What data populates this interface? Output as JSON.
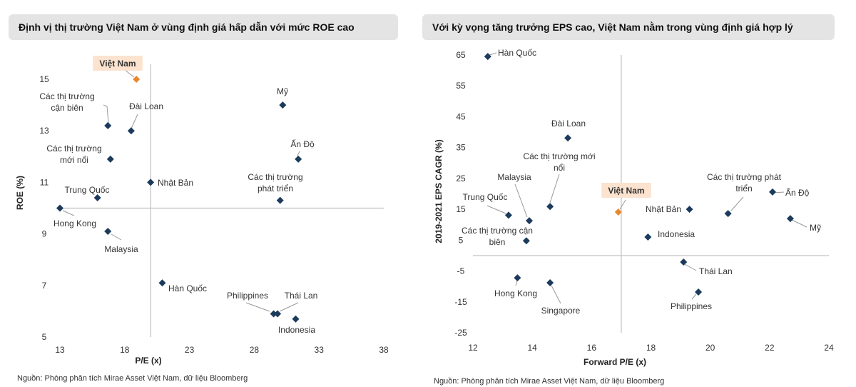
{
  "chart_data": [
    {
      "type": "scatter",
      "title": "Định vị thị trường Việt Nam ở vùng định giá hấp dẫn với mức ROE cao",
      "xlabel": "P/E (x)",
      "ylabel": "ROE (%)",
      "xlim": [
        13,
        38
      ],
      "ylim": [
        5,
        15
      ],
      "xticks": [
        "13",
        "18",
        "23",
        "28",
        "33",
        "38"
      ],
      "yticks": [
        "5",
        "7",
        "9",
        "11",
        "13",
        "15"
      ],
      "crosshair": {
        "x": 20,
        "y": 10
      },
      "grid": false,
      "source": "Nguồn: Phòng phân tích Mirae Asset Việt Nam, dữ liệu Bloomberg",
      "points": [
        {
          "label": "Việt Nam",
          "x": 18.9,
          "y": 15.0,
          "highlight": true
        },
        {
          "label": "Các thị trường cận biên",
          "lines": [
            "Các thị trường",
            "cận biên"
          ],
          "x": 16.7,
          "y": 13.2
        },
        {
          "label": "Đài Loan",
          "x": 18.5,
          "y": 13.0
        },
        {
          "label": "Mỹ",
          "x": 30.2,
          "y": 14.0
        },
        {
          "label": "Ấn Độ",
          "x": 31.4,
          "y": 11.9
        },
        {
          "label": "Các thị trường mới nổi",
          "lines": [
            "Các thị trường",
            "mới nổi"
          ],
          "x": 16.9,
          "y": 11.9
        },
        {
          "label": "Nhật Bản",
          "x": 20.0,
          "y": 11.0
        },
        {
          "label": "Trung Quốc",
          "x": 15.9,
          "y": 10.4
        },
        {
          "label": "Các thị trường phát triển",
          "lines": [
            "Các thị trường",
            "phát triển"
          ],
          "x": 30.0,
          "y": 10.3
        },
        {
          "label": "Hong Kong",
          "x": 13.0,
          "y": 10.0
        },
        {
          "label": "Malaysia",
          "x": 16.7,
          "y": 9.1
        },
        {
          "label": "Hàn Quốc",
          "x": 20.9,
          "y": 7.1
        },
        {
          "label": "Philippines",
          "x": 29.5,
          "y": 5.9
        },
        {
          "label": "Thái Lan",
          "x": 29.8,
          "y": 5.9
        },
        {
          "label": "Indonesia",
          "x": 31.2,
          "y": 5.7
        }
      ]
    },
    {
      "type": "scatter",
      "title": "Với kỳ vọng tăng trưởng EPS cao, Việt Nam nằm trong vùng định giá hợp lý",
      "xlabel": "Forward P/E (x)",
      "ylabel": "2019-2021 EPS CAGR (%)",
      "xlim": [
        12,
        24
      ],
      "ylim": [
        -25,
        65
      ],
      "xticks": [
        "12",
        "14",
        "16",
        "18",
        "20",
        "22",
        "24"
      ],
      "yticks": [
        "-25",
        "-15",
        "-5",
        "5",
        "15",
        "25",
        "35",
        "45",
        "55",
        "65"
      ],
      "crosshair": {
        "x": 17,
        "y": 0
      },
      "grid": false,
      "source": "Nguồn: Phòng phân tích Mirae Asset Việt Nam, dữ liệu Bloomberg",
      "points": [
        {
          "label": "Hàn Quốc",
          "x": 12.5,
          "y": 64.5
        },
        {
          "label": "Đài Loan",
          "x": 15.2,
          "y": 38.1
        },
        {
          "label": "Các thị trường mới nổi",
          "lines": [
            "Các thị trường mới",
            "nổi"
          ],
          "x": 14.6,
          "y": 15.9
        },
        {
          "label": "Malaysia",
          "x": 13.9,
          "y": 11.3
        },
        {
          "label": "Trung Quốc",
          "x": 13.2,
          "y": 13.1
        },
        {
          "label": "Các thị trường cận biên",
          "lines": [
            "Các thị trường cận",
            "biên"
          ],
          "x": 13.8,
          "y": 4.8
        },
        {
          "label": "Việt Nam",
          "x": 16.9,
          "y": 14.1,
          "highlight": true
        },
        {
          "label": "Nhật Bản",
          "x": 19.3,
          "y": 15.0
        },
        {
          "label": "Các thị trường phát triển",
          "lines": [
            "Các thị trường phát",
            "triển"
          ],
          "x": 20.6,
          "y": 13.6
        },
        {
          "label": "Ấn Độ",
          "x": 22.1,
          "y": 20.6
        },
        {
          "label": "Mỹ",
          "x": 22.7,
          "y": 12.0
        },
        {
          "label": "Indonesia",
          "x": 17.9,
          "y": 6.0
        },
        {
          "label": "Thái Lan",
          "x": 19.1,
          "y": -2.1
        },
        {
          "label": "Philippines",
          "x": 19.6,
          "y": -11.8
        },
        {
          "label": "Hong Kong",
          "x": 13.5,
          "y": -7.2
        },
        {
          "label": "Singapore",
          "x": 14.6,
          "y": -8.8
        }
      ]
    }
  ],
  "colors": {
    "point": "#1b3a5c",
    "highlight": "#e8892f",
    "highlight_bg": "#fbe3cf",
    "title_bg": "#e4e4e4",
    "axis": "#bfbfbf"
  }
}
